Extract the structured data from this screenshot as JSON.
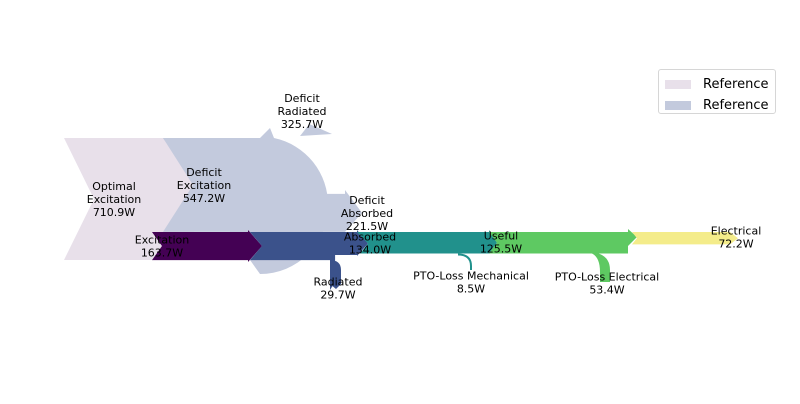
{
  "chart_data": {
    "type": "sankey",
    "legend": {
      "placement": "top-right",
      "entries": [
        {
          "label": "Reference",
          "color": "#e8e0ea"
        },
        {
          "label": "Reference",
          "color": "#c3cadd"
        }
      ]
    },
    "reference_diagrams": [
      {
        "name": "Reference",
        "color": "#e8e0ea",
        "flows": [
          {
            "label": "Optimal\nExcitation\n710.9W",
            "value": 710.9,
            "role": "input"
          },
          {
            "label": "",
            "value": 710.9,
            "role": "output"
          }
        ]
      },
      {
        "name": "Reference",
        "color": "#c3cadd",
        "flows": [
          {
            "label": "Deficit\nExcitation\n547.2W",
            "value": 547.2,
            "role": "input"
          },
          {
            "label": "Deficit\nRadiated\n325.7W",
            "value": 325.7,
            "role": "output"
          },
          {
            "label": "Deficit\nAbsorbed\n221.5W",
            "value": 221.5,
            "role": "output"
          }
        ]
      }
    ],
    "main_chain": [
      {
        "label": "Excitation\n163.7W",
        "value": 163.7,
        "color": "#440154"
      },
      {
        "label": "Absorbed\n134.0W",
        "value": 134.0,
        "color": "#3b528b"
      },
      {
        "label": "Useful\n125.5W",
        "value": 125.5,
        "color": "#21918c"
      },
      {
        "label": "",
        "value": 125.5,
        "color": "#5ec962"
      },
      {
        "label": "Electrical\n72.2W",
        "value": 72.2,
        "color": "#f4ec8a"
      }
    ],
    "losses": [
      {
        "label": "Radiated\n29.7W",
        "value": 29.7,
        "color": "#3b528b"
      },
      {
        "label": "PTO-Loss Mechanical\n8.5W",
        "value": 8.5,
        "color": "#21918c"
      },
      {
        "label": "PTO-Loss Electrical\n53.4W",
        "value": 53.4,
        "color": "#5ec962"
      }
    ]
  }
}
